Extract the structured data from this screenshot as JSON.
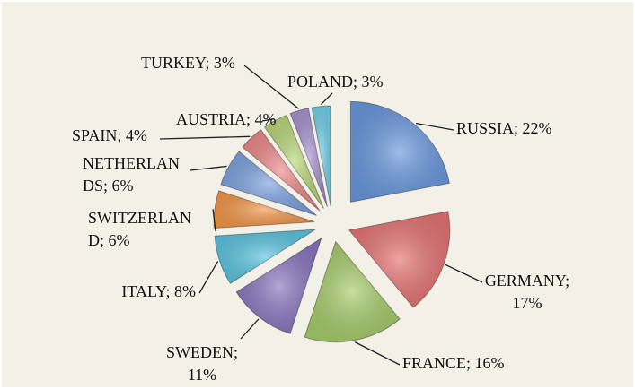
{
  "chart_data": {
    "type": "pie",
    "labels": [
      "RUSSIA; 22%",
      "GERMANY; 17%",
      "FRANCE; 16%",
      "SWEDEN; 11%",
      "ITALY; 8%",
      "SWITZERLAND; 6%",
      "NETHERLANDS; 6%",
      "SPAIN; 4%",
      "AUSTRIA; 4%",
      "TURKEY; 3%",
      "POLAND; 3%"
    ],
    "values": [
      22,
      17,
      16,
      11,
      8,
      6,
      6,
      4,
      4,
      3,
      3
    ],
    "colors": [
      "#6a9ae0",
      "#e87474",
      "#a8cf6c",
      "#8c76c2",
      "#5cc6e2",
      "#f6984a",
      "#7ea3e2",
      "#f08a8a",
      "#bcd97a",
      "#a894d2",
      "#74d2ec"
    ]
  }
}
